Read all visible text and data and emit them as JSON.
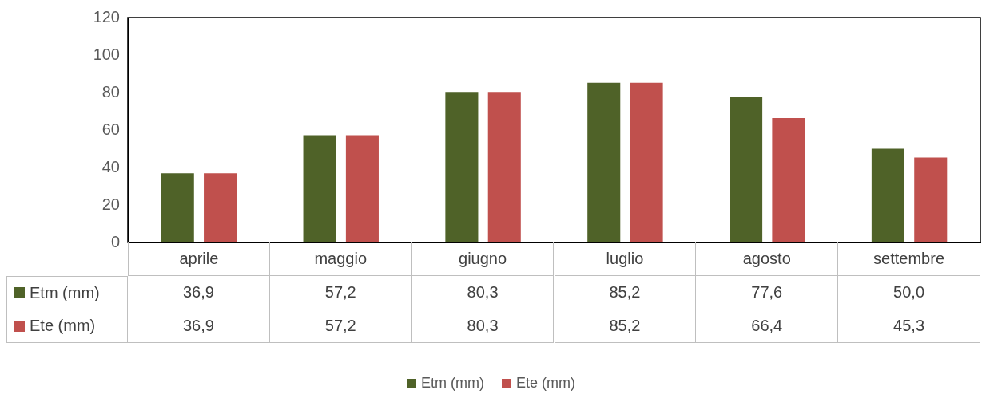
{
  "chart_data": {
    "type": "bar",
    "categories": [
      "aprile",
      "maggio",
      "giugno",
      "luglio",
      "agosto",
      "settembre"
    ],
    "series": [
      {
        "name": "Etm (mm)",
        "color": "#4f6228",
        "values": [
          36.9,
          57.2,
          80.3,
          85.2,
          77.6,
          50.0
        ],
        "value_labels": [
          "36,9",
          "57,2",
          "80,3",
          "85,2",
          "77,6",
          "50,0"
        ]
      },
      {
        "name": "Ete (mm)",
        "color": "#c0504d",
        "values": [
          36.9,
          57.2,
          80.3,
          85.2,
          66.4,
          45.3
        ],
        "value_labels": [
          "36,9",
          "57,2",
          "80,3",
          "85,2",
          "66,4",
          "45,3"
        ]
      }
    ],
    "ylim": [
      0,
      120
    ],
    "yticks": [
      0,
      20,
      40,
      60,
      80,
      100,
      120
    ],
    "grid": false,
    "legend": "bottom",
    "data_labels": true
  }
}
